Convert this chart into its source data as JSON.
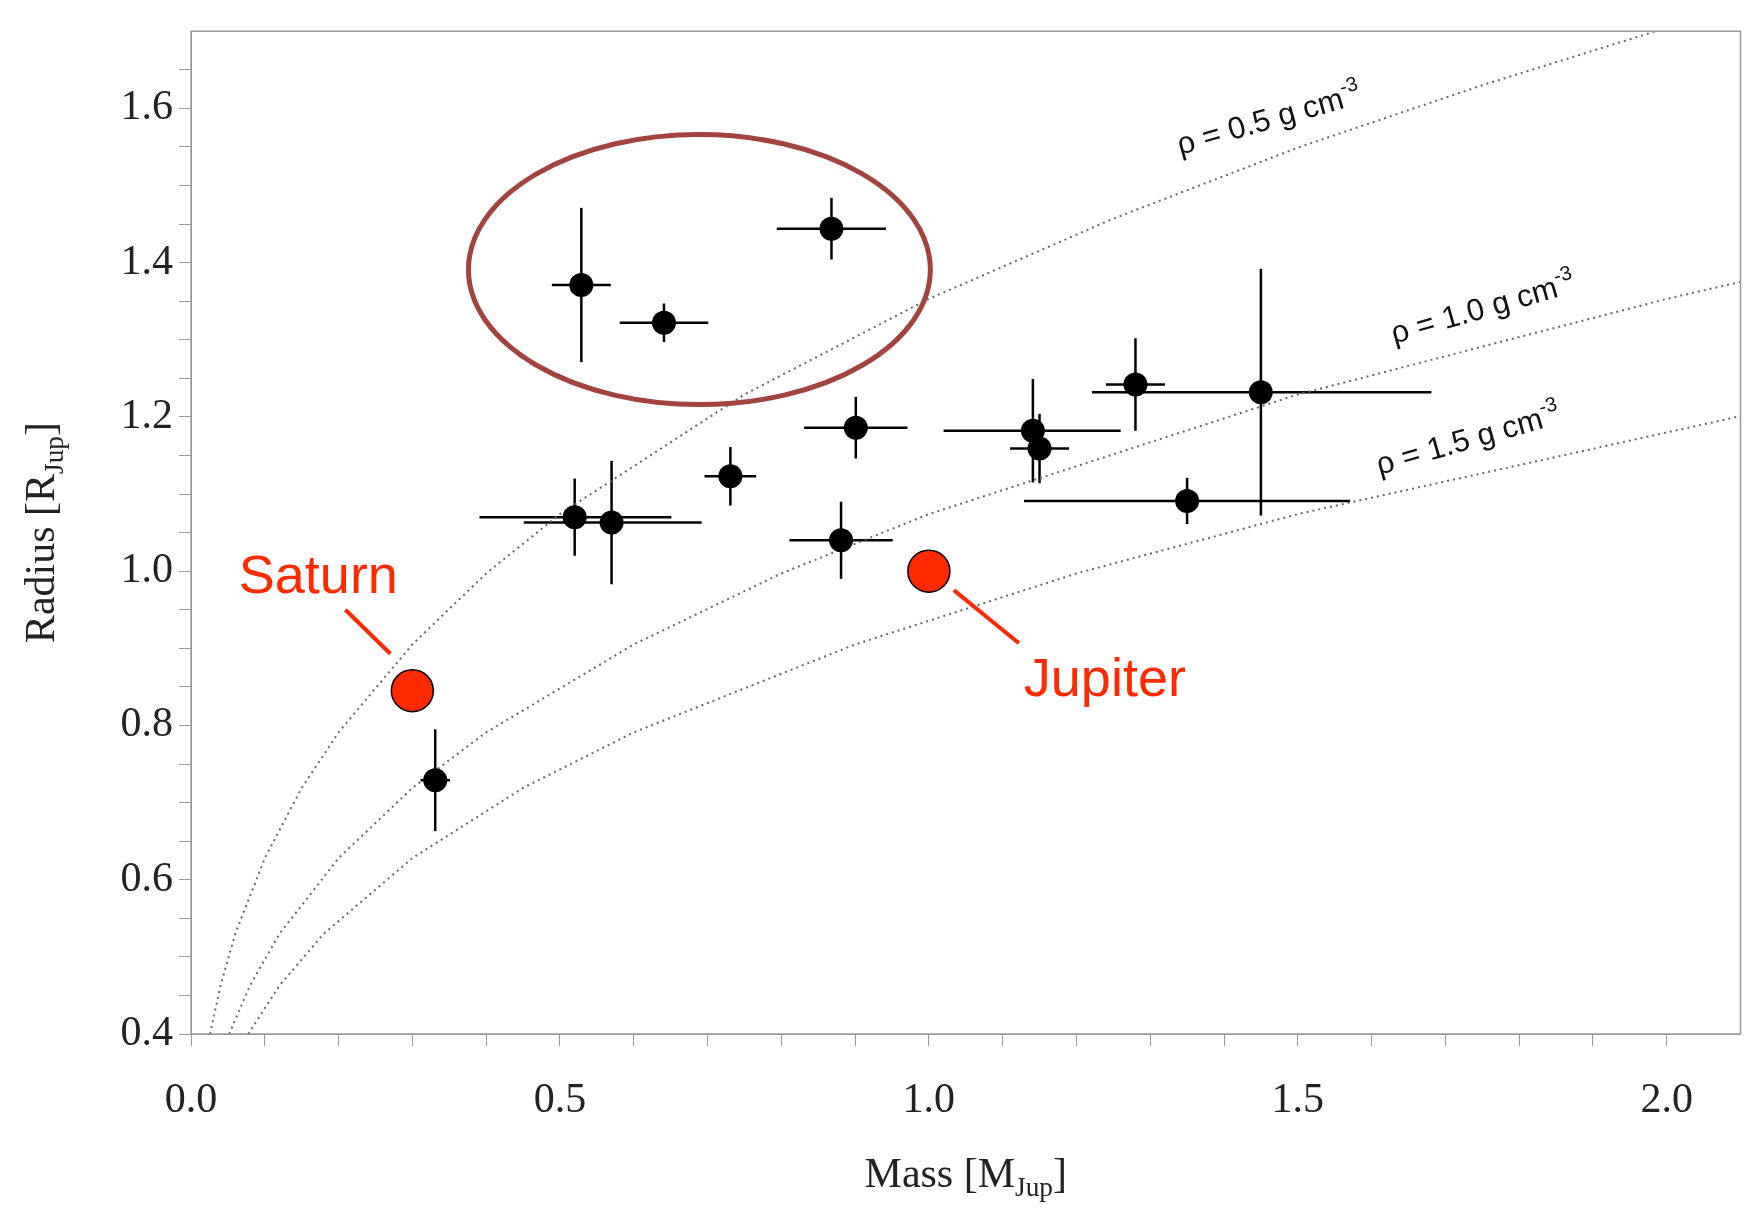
{
  "chart_data": {
    "type": "scatter",
    "xlabel": "Mass [M$_{Jup}$]",
    "ylabel": "Radius [R$_{Jup}$]",
    "xlim": [
      0,
      2.1
    ],
    "ylim": [
      0.4,
      1.7
    ],
    "xticks": [
      {
        "value": 0,
        "label": "0.0"
      },
      {
        "value": 0.1,
        "label": null
      },
      {
        "value": 0.2,
        "label": null
      },
      {
        "value": 0.3,
        "label": null
      },
      {
        "value": 0.4,
        "label": null
      },
      {
        "value": 0.5,
        "label": "0.5"
      },
      {
        "value": 0.6,
        "label": null
      },
      {
        "value": 0.7,
        "label": null
      },
      {
        "value": 0.8,
        "label": null
      },
      {
        "value": 0.9,
        "label": null
      },
      {
        "value": 1,
        "label": "1.0"
      },
      {
        "value": 1.1,
        "label": null
      },
      {
        "value": 1.2,
        "label": null
      },
      {
        "value": 1.3,
        "label": null
      },
      {
        "value": 1.4,
        "label": null
      },
      {
        "value": 1.5,
        "label": "1.5"
      },
      {
        "value": 1.6,
        "label": null
      },
      {
        "value": 1.7,
        "label": null
      },
      {
        "value": 1.8,
        "label": null
      },
      {
        "value": 1.9,
        "label": null
      },
      {
        "value": 2,
        "label": "2.0"
      }
    ],
    "yticks": [
      {
        "value": 0.4,
        "label": "0.4"
      },
      {
        "value": 0.45,
        "label": null
      },
      {
        "value": 0.5,
        "label": null
      },
      {
        "value": 0.55,
        "label": null
      },
      {
        "value": 0.6,
        "label": "0.6"
      },
      {
        "value": 0.65,
        "label": null
      },
      {
        "value": 0.7,
        "label": null
      },
      {
        "value": 0.75,
        "label": null
      },
      {
        "value": 0.8,
        "label": "0.8"
      },
      {
        "value": 0.85,
        "label": null
      },
      {
        "value": 0.9,
        "label": null
      },
      {
        "value": 0.95,
        "label": null
      },
      {
        "value": 1,
        "label": "1.0"
      },
      {
        "value": 1.05,
        "label": null
      },
      {
        "value": 1.1,
        "label": null
      },
      {
        "value": 1.15,
        "label": null
      },
      {
        "value": 1.2,
        "label": "1.2"
      },
      {
        "value": 1.25,
        "label": null
      },
      {
        "value": 1.3,
        "label": null
      },
      {
        "value": 1.35,
        "label": null
      },
      {
        "value": 1.4,
        "label": "1.4"
      },
      {
        "value": 1.45,
        "label": null
      },
      {
        "value": 1.5,
        "label": null
      },
      {
        "value": 1.55,
        "label": null
      },
      {
        "value": 1.6,
        "label": "1.6"
      },
      {
        "value": 1.65,
        "label": null
      }
    ],
    "annotations": [
      {
        "text": "ρ = 0.5 g cm$^{-3}$",
        "x": 1.5,
        "y": 1.549
      },
      {
        "text": "ρ = 1.0 g cm$^{-3}$",
        "x": 1.79,
        "y": 1.304
      },
      {
        "text": "ρ = 1.5 g cm$^{-3}$",
        "x": 1.77,
        "y": 1.134
      }
    ],
    "series": [
      {
        "type": "line",
        "color": "#666666",
        "line_style": "dotted",
        "marker": "none",
        "x": [
          0.0259,
          0.04,
          0.06,
          0.1,
          0.15,
          0.2,
          0.3,
          0.4,
          0.5,
          0.75,
          1.0,
          1.25,
          1.5,
          1.75,
          1.985
        ],
        "values": [
          0.4,
          0.463,
          0.53,
          0.628,
          0.719,
          0.791,
          0.905,
          0.997,
          1.074,
          1.229,
          1.353,
          1.457,
          1.549,
          1.63,
          1.7
        ]
      },
      {
        "type": "line",
        "color": "#666666",
        "line_style": "dotted",
        "marker": "none",
        "x": [
          0.0517,
          0.08,
          0.12,
          0.2,
          0.3,
          0.4,
          0.6,
          0.8,
          1.0,
          1.5,
          2.0,
          2.1
        ],
        "values": [
          0.4,
          0.463,
          0.53,
          0.628,
          0.719,
          0.791,
          0.905,
          0.997,
          1.074,
          1.229,
          1.353,
          1.375
        ]
      },
      {
        "type": "line",
        "color": "#666666",
        "line_style": "dotted",
        "marker": "none",
        "x": [
          0.0776,
          0.12,
          0.18,
          0.3,
          0.45,
          0.6,
          0.9,
          1.2,
          1.5,
          2.1
        ],
        "values": [
          0.4,
          0.463,
          0.53,
          0.628,
          0.719,
          0.791,
          0.905,
          0.997,
          1.074,
          1.201
        ]
      },
      {
        "type": "scatter",
        "color": "#000000",
        "marker": "circle",
        "x": [
          0.529,
          0.641,
          0.868,
          0.52,
          0.57,
          0.731,
          0.901,
          0.881,
          1.141,
          1.15,
          1.28,
          1.45,
          1.35,
          0.331
        ],
        "values": [
          1.371,
          1.322,
          1.444,
          1.07,
          1.063,
          1.123,
          1.186,
          1.04,
          1.182,
          1.159,
          1.242,
          1.232,
          1.091,
          0.729
        ],
        "errors": [
          0.1,
          0.025,
          0.04,
          0.05,
          0.08,
          0.038,
          0.04,
          0.05,
          0.067,
          0.045,
          0.06,
          0.16,
          0.03,
          0.066
        ],
        "xerrors": [
          0.04,
          0.06,
          0.074,
          [
            0.391,
            0.651
          ],
          [
            0.451,
            0.692
          ],
          0.035,
          0.07,
          0.07,
          [
            1.02,
            1.26
          ],
          0.04,
          0.04,
          [
            1.221,
            1.681
          ],
          [
            1.129,
            1.571
          ],
          0.02
        ]
      },
      {
        "type": "scatter",
        "name": "Saturn",
        "color": "#ff2a00",
        "marker": "circle",
        "x": [
          0.3
        ],
        "values": [
          0.845
        ]
      },
      {
        "type": "scatter",
        "name": "Jupiter",
        "color": "#ff2a00",
        "marker": "circle",
        "x": [
          1.0
        ],
        "values": [
          1.0
        ]
      }
    ]
  }
}
